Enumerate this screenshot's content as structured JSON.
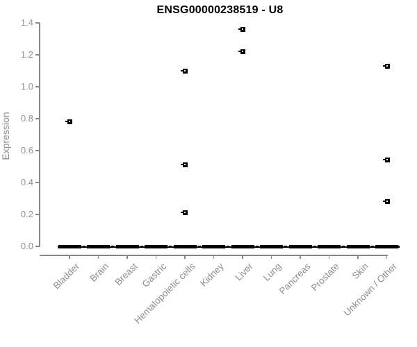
{
  "chart_data": {
    "type": "boxplot",
    "title": "ENSG00000238519 - U8",
    "xlabel": "",
    "ylabel": "Expression",
    "ylim": [
      0,
      1.4
    ],
    "yticks": [
      {
        "value": 0.0,
        "label": "0.0"
      },
      {
        "value": 0.2,
        "label": "0.2"
      },
      {
        "value": 0.4,
        "label": "0.4"
      },
      {
        "value": 0.6,
        "label": "0.6"
      },
      {
        "value": 0.8,
        "label": "0.8"
      },
      {
        "value": 1.0,
        "label": "1.0"
      },
      {
        "value": 1.2,
        "label": "1.2"
      },
      {
        "value": 1.4,
        "label": "1.4"
      }
    ],
    "categories": [
      "Bladder",
      "Brain",
      "Breast",
      "Gastric",
      "Hematopoietic cells",
      "Kidney",
      "Liver",
      "Lung",
      "Pancreas",
      "Prostate",
      "Skin",
      "Unknown / Other"
    ],
    "boxes": [
      {
        "category": "Bladder",
        "median": 0,
        "q1": 0,
        "q3": 0,
        "outliers": [
          0.78
        ]
      },
      {
        "category": "Brain",
        "median": 0,
        "q1": 0,
        "q3": 0,
        "outliers": []
      },
      {
        "category": "Breast",
        "median": 0,
        "q1": 0,
        "q3": 0,
        "outliers": []
      },
      {
        "category": "Gastric",
        "median": 0,
        "q1": 0,
        "q3": 0,
        "outliers": []
      },
      {
        "category": "Hematopoietic cells",
        "median": 0,
        "q1": 0,
        "q3": 0,
        "outliers": [
          1.1,
          0.51,
          0.21
        ]
      },
      {
        "category": "Kidney",
        "median": 0,
        "q1": 0,
        "q3": 0,
        "outliers": []
      },
      {
        "category": "Liver",
        "median": 0,
        "q1": 0,
        "q3": 0,
        "outliers": [
          1.36,
          1.22
        ]
      },
      {
        "category": "Lung",
        "median": 0,
        "q1": 0,
        "q3": 0,
        "outliers": []
      },
      {
        "category": "Pancreas",
        "median": 0,
        "q1": 0,
        "q3": 0,
        "outliers": []
      },
      {
        "category": "Prostate",
        "median": 0,
        "q1": 0,
        "q3": 0,
        "outliers": []
      },
      {
        "category": "Skin",
        "median": 0,
        "q1": 0,
        "q3": 0,
        "outliers": []
      },
      {
        "category": "Unknown / Other",
        "median": 0,
        "q1": 0,
        "q3": 0,
        "outliers": [
          1.13,
          0.54,
          0.28
        ]
      }
    ],
    "legend": "none",
    "grid": false,
    "colors": {
      "box": "#000000",
      "axis": "#888888",
      "tick_text": "#929292",
      "title": "#000000",
      "background": "#ffffff"
    }
  }
}
